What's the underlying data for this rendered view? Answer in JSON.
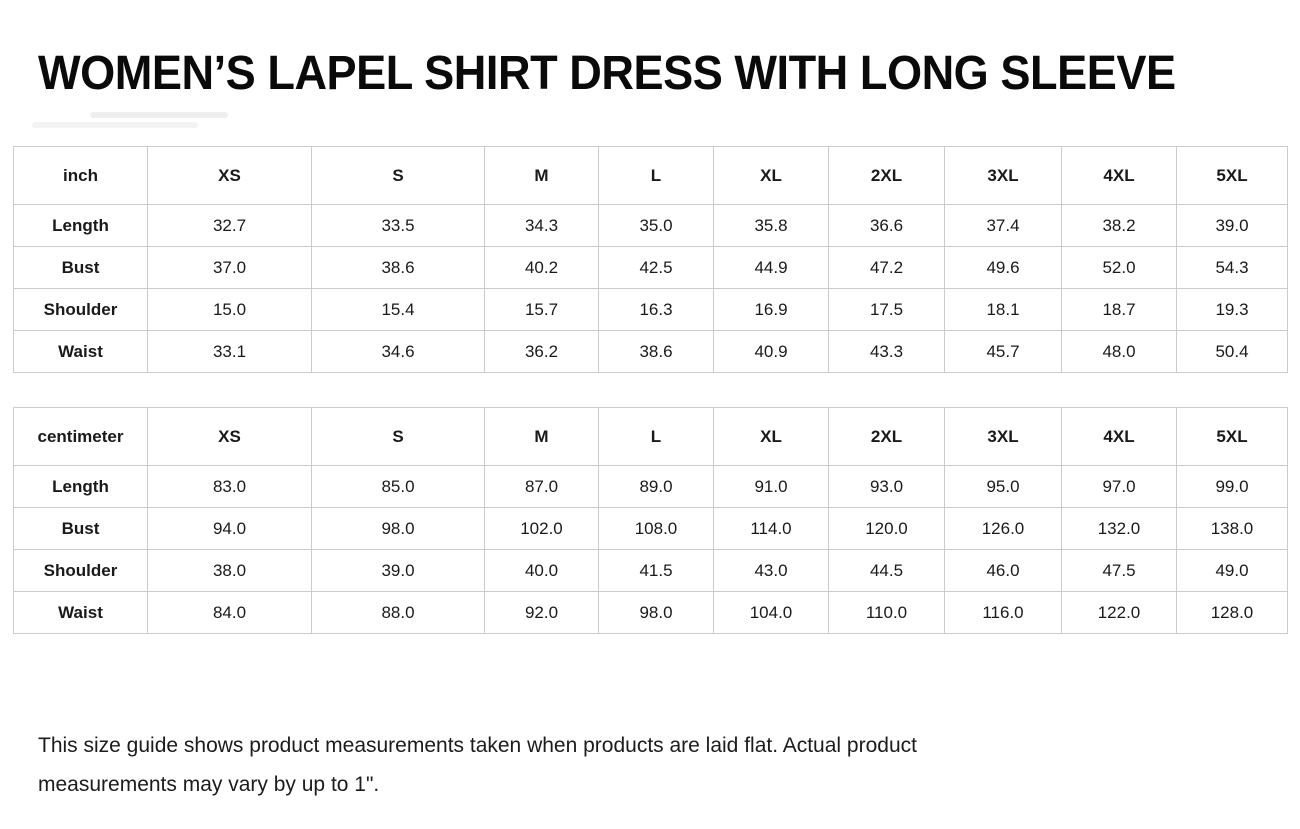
{
  "title": "WOMEN’S LAPEL SHIRT DRESS WITH LONG SLEEVE",
  "size_tables": [
    {
      "unit_label": "inch",
      "sizes": [
        "XS",
        "S",
        "M",
        "L",
        "XL",
        "2XL",
        "3XL",
        "4XL",
        "5XL"
      ],
      "rows": [
        {
          "label": "Length",
          "values": [
            "32.7",
            "33.5",
            "34.3",
            "35.0",
            "35.8",
            "36.6",
            "37.4",
            "38.2",
            "39.0"
          ]
        },
        {
          "label": "Bust",
          "values": [
            "37.0",
            "38.6",
            "40.2",
            "42.5",
            "44.9",
            "47.2",
            "49.6",
            "52.0",
            "54.3"
          ]
        },
        {
          "label": "Shoulder",
          "values": [
            "15.0",
            "15.4",
            "15.7",
            "16.3",
            "16.9",
            "17.5",
            "18.1",
            "18.7",
            "19.3"
          ]
        },
        {
          "label": "Waist",
          "values": [
            "33.1",
            "34.6",
            "36.2",
            "38.6",
            "40.9",
            "43.3",
            "45.7",
            "48.0",
            "50.4"
          ]
        }
      ]
    },
    {
      "unit_label": "centimeter",
      "sizes": [
        "XS",
        "S",
        "M",
        "L",
        "XL",
        "2XL",
        "3XL",
        "4XL",
        "5XL"
      ],
      "rows": [
        {
          "label": "Length",
          "values": [
            "83.0",
            "85.0",
            "87.0",
            "89.0",
            "91.0",
            "93.0",
            "95.0",
            "97.0",
            "99.0"
          ]
        },
        {
          "label": "Bust",
          "values": [
            "94.0",
            "98.0",
            "102.0",
            "108.0",
            "114.0",
            "120.0",
            "126.0",
            "132.0",
            "138.0"
          ]
        },
        {
          "label": "Shoulder",
          "values": [
            "38.0",
            "39.0",
            "40.0",
            "41.5",
            "43.0",
            "44.5",
            "46.0",
            "47.5",
            "49.0"
          ]
        },
        {
          "label": "Waist",
          "values": [
            "84.0",
            "88.0",
            "92.0",
            "98.0",
            "104.0",
            "110.0",
            "116.0",
            "122.0",
            "128.0"
          ]
        }
      ]
    }
  ],
  "footer": {
    "lines": [
      "This size guide shows product measurements taken when products are laid flat. Actual product",
      "measurements may vary by up to 1\"."
    ]
  },
  "colors": {
    "text": "#111111",
    "border": "#cccccc",
    "background": "#ffffff"
  }
}
